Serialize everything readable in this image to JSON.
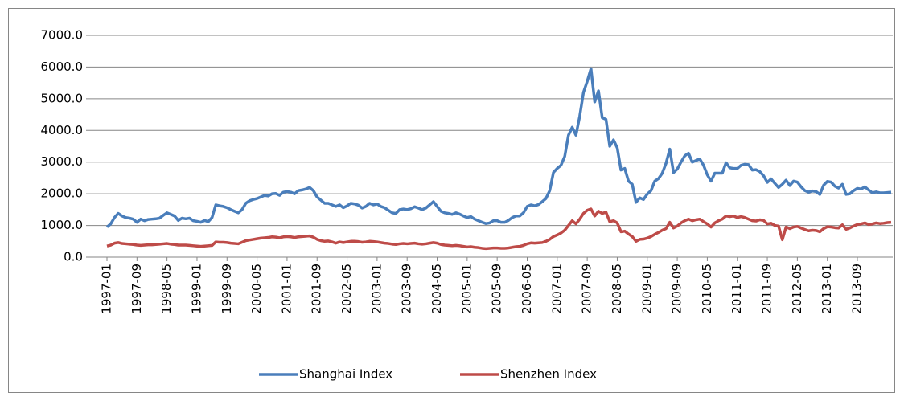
{
  "chart_data": {
    "type": "line",
    "categories": [
      "1997-01",
      null,
      null,
      null,
      null,
      null,
      null,
      null,
      "1997-09",
      null,
      null,
      null,
      null,
      null,
      null,
      null,
      "1998-05",
      null,
      null,
      null,
      null,
      null,
      null,
      null,
      "1999-01",
      null,
      null,
      null,
      null,
      null,
      null,
      null,
      "1999-09",
      null,
      null,
      null,
      null,
      null,
      null,
      null,
      "2000-05",
      null,
      null,
      null,
      null,
      null,
      null,
      null,
      "2001-01",
      null,
      null,
      null,
      null,
      null,
      null,
      null,
      "2001-09",
      null,
      null,
      null,
      null,
      null,
      null,
      null,
      "2002-05",
      null,
      null,
      null,
      null,
      null,
      null,
      null,
      "2003-01",
      null,
      null,
      null,
      null,
      null,
      null,
      null,
      "2003-09",
      null,
      null,
      null,
      null,
      null,
      null,
      null,
      "2004-05",
      null,
      null,
      null,
      null,
      null,
      null,
      null,
      "2005-01",
      null,
      null,
      null,
      null,
      null,
      null,
      null,
      "2005-09",
      null,
      null,
      null,
      null,
      null,
      null,
      null,
      "2006-05",
      null,
      null,
      null,
      null,
      null,
      null,
      null,
      "2007-01",
      null,
      null,
      null,
      null,
      null,
      null,
      null,
      "2007-09",
      null,
      null,
      null,
      null,
      null,
      null,
      null,
      "2008-05",
      null,
      null,
      null,
      null,
      null,
      null,
      null,
      "2009-01",
      null,
      null,
      null,
      null,
      null,
      null,
      null,
      "2009-09",
      null,
      null,
      null,
      null,
      null,
      null,
      null,
      "2010-05",
      null,
      null,
      null,
      null,
      null,
      null,
      null,
      "2011-01",
      null,
      null,
      null,
      null,
      null,
      null,
      null,
      "2011-09",
      null,
      null,
      null,
      null,
      null,
      null,
      null,
      "2012-05",
      null,
      null,
      null,
      null,
      null,
      null,
      null,
      "2013-01",
      null,
      null,
      null,
      null,
      null,
      null,
      null,
      "2013-09",
      null,
      null,
      null,
      null,
      null,
      null,
      null,
      null,
      null
    ],
    "series": [
      {
        "name": "Shanghai Index",
        "color": "#4a7ebb",
        "values": [
          950,
          1050,
          1250,
          1380,
          1300,
          1250,
          1230,
          1200,
          1100,
          1200,
          1150,
          1190,
          1200,
          1210,
          1230,
          1320,
          1400,
          1350,
          1300,
          1160,
          1230,
          1210,
          1230,
          1150,
          1130,
          1100,
          1160,
          1120,
          1250,
          1650,
          1620,
          1600,
          1560,
          1500,
          1450,
          1400,
          1500,
          1700,
          1780,
          1820,
          1850,
          1900,
          1950,
          1930,
          2000,
          2010,
          1950,
          2050,
          2070,
          2050,
          2000,
          2100,
          2120,
          2150,
          2200,
          2100,
          1900,
          1800,
          1700,
          1700,
          1650,
          1600,
          1650,
          1560,
          1620,
          1700,
          1680,
          1640,
          1550,
          1600,
          1700,
          1650,
          1680,
          1600,
          1560,
          1480,
          1400,
          1380,
          1500,
          1520,
          1500,
          1530,
          1590,
          1550,
          1500,
          1550,
          1650,
          1750,
          1600,
          1450,
          1400,
          1380,
          1350,
          1400,
          1360,
          1300,
          1250,
          1280,
          1200,
          1150,
          1100,
          1060,
          1080,
          1150,
          1150,
          1100,
          1100,
          1160,
          1250,
          1300,
          1300,
          1400,
          1600,
          1650,
          1620,
          1660,
          1750,
          1850,
          2100,
          2675,
          2800,
          2900,
          3180,
          3850,
          4100,
          3850,
          4450,
          5200,
          5550,
          5950,
          4900,
          5250,
          4400,
          4350,
          3500,
          3700,
          3450,
          2750,
          2800,
          2400,
          2300,
          1730,
          1870,
          1820,
          1990,
          2100,
          2400,
          2480,
          2650,
          2960,
          3410,
          2670,
          2780,
          3000,
          3200,
          3280,
          3000,
          3050,
          3100,
          2900,
          2600,
          2400,
          2650,
          2650,
          2650,
          2980,
          2820,
          2800,
          2800,
          2900,
          2930,
          2920,
          2750,
          2760,
          2700,
          2570,
          2360,
          2470,
          2330,
          2200,
          2300,
          2430,
          2260,
          2400,
          2370,
          2220,
          2100,
          2050,
          2090,
          2070,
          1980,
          2270,
          2390,
          2370,
          2240,
          2180,
          2300,
          1980,
          2000,
          2100,
          2170,
          2150,
          2220,
          2120,
          2030,
          2060,
          2030,
          2030,
          2040,
          2050
        ]
      },
      {
        "name": "Shenzhen Index",
        "color": "#be4b48",
        "values": [
          350,
          380,
          440,
          460,
          430,
          420,
          410,
          400,
          380,
          370,
          380,
          390,
          390,
          400,
          410,
          420,
          430,
          410,
          400,
          380,
          380,
          380,
          370,
          360,
          350,
          340,
          350,
          360,
          370,
          480,
          470,
          470,
          460,
          440,
          430,
          420,
          470,
          520,
          540,
          560,
          580,
          600,
          610,
          620,
          640,
          630,
          610,
          640,
          650,
          640,
          620,
          640,
          650,
          660,
          670,
          630,
          560,
          520,
          500,
          510,
          480,
          440,
          480,
          460,
          480,
          500,
          500,
          490,
          470,
          480,
          500,
          490,
          480,
          460,
          440,
          430,
          410,
          400,
          420,
          430,
          420,
          430,
          440,
          420,
          410,
          420,
          440,
          460,
          440,
          400,
          380,
          370,
          360,
          370,
          360,
          340,
          320,
          330,
          310,
          300,
          280,
          270,
          280,
          290,
          290,
          280,
          280,
          290,
          310,
          330,
          340,
          370,
          420,
          450,
          440,
          450,
          460,
          500,
          560,
          650,
          700,
          760,
          850,
          1000,
          1150,
          1050,
          1200,
          1380,
          1480,
          1520,
          1300,
          1450,
          1380,
          1420,
          1120,
          1150,
          1080,
          800,
          820,
          730,
          650,
          500,
          560,
          570,
          600,
          650,
          720,
          780,
          850,
          900,
          1100,
          920,
          980,
          1080,
          1150,
          1200,
          1150,
          1180,
          1200,
          1120,
          1050,
          950,
          1080,
          1150,
          1200,
          1300,
          1280,
          1300,
          1250,
          1280,
          1250,
          1200,
          1150,
          1140,
          1180,
          1160,
          1050,
          1070,
          1000,
          980,
          550,
          950,
          900,
          950,
          970,
          920,
          870,
          830,
          850,
          840,
          800,
          900,
          960,
          950,
          930,
          920,
          1020,
          880,
          920,
          980,
          1030,
          1050,
          1080,
          1030,
          1050,
          1080,
          1060,
          1070,
          1090,
          1100
        ]
      }
    ],
    "ylim": [
      0,
      7000
    ],
    "yticks": [
      {
        "value": 0,
        "label": "0.0"
      },
      {
        "value": 1000,
        "label": "1000.0"
      },
      {
        "value": 2000,
        "label": "2000.0"
      },
      {
        "value": 3000,
        "label": "3000.0"
      },
      {
        "value": 4000,
        "label": "4000.0"
      },
      {
        "value": 5000,
        "label": "5000.0"
      },
      {
        "value": 6000,
        "label": "6000.0"
      },
      {
        "value": 7000,
        "label": "7000.0"
      }
    ],
    "grid": true,
    "legend": "bottom"
  }
}
